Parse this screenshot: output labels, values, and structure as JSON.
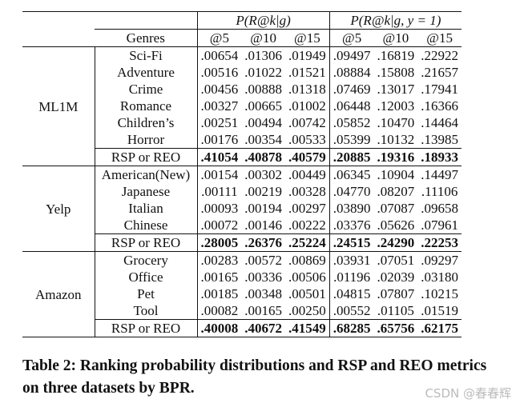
{
  "table": {
    "metric_headers": [
      "P(R@k|g)",
      "P(R@k|g, y = 1)"
    ],
    "col_headers": [
      "Genres",
      "@5",
      "@10",
      "@15",
      "@5",
      "@10",
      "@15"
    ],
    "groups": [
      {
        "dataset": "ML1M",
        "rows": [
          {
            "genre": "Sci-Fi",
            "values": [
              ".00654",
              ".01306",
              ".01949",
              ".09497",
              ".16819",
              ".22922"
            ]
          },
          {
            "genre": "Adventure",
            "values": [
              ".00516",
              ".01022",
              ".01521",
              ".08884",
              ".15808",
              ".21657"
            ]
          },
          {
            "genre": "Crime",
            "values": [
              ".00456",
              ".00888",
              ".01318",
              ".07469",
              ".13017",
              ".17941"
            ]
          },
          {
            "genre": "Romance",
            "values": [
              ".00327",
              ".00665",
              ".01002",
              ".06448",
              ".12003",
              ".16366"
            ]
          },
          {
            "genre": "Children’s",
            "values": [
              ".00251",
              ".00494",
              ".00742",
              ".05852",
              ".10470",
              ".14464"
            ]
          },
          {
            "genre": "Horror",
            "values": [
              ".00176",
              ".00354",
              ".00533",
              ".05399",
              ".10132",
              ".13985"
            ]
          }
        ],
        "summary": {
          "label": "RSP or REO",
          "values": [
            ".41054",
            ".40878",
            ".40579",
            ".20885",
            ".19316",
            ".18933"
          ]
        }
      },
      {
        "dataset": "Yelp",
        "rows": [
          {
            "genre": "American(New)",
            "values": [
              ".00154",
              ".00302",
              ".00449",
              ".06345",
              ".10904",
              ".14497"
            ]
          },
          {
            "genre": "Japanese",
            "values": [
              ".00111",
              ".00219",
              ".00328",
              ".04770",
              ".08207",
              ".11106"
            ]
          },
          {
            "genre": "Italian",
            "values": [
              ".00093",
              ".00194",
              ".00297",
              ".03890",
              ".07087",
              ".09658"
            ]
          },
          {
            "genre": "Chinese",
            "values": [
              ".00072",
              ".00146",
              ".00222",
              ".03376",
              ".05626",
              ".07961"
            ]
          }
        ],
        "summary": {
          "label": "RSP or REO",
          "values": [
            ".28005",
            ".26376",
            ".25224",
            ".24515",
            ".24290",
            ".22253"
          ]
        }
      },
      {
        "dataset": "Amazon",
        "rows": [
          {
            "genre": "Grocery",
            "values": [
              ".00283",
              ".00572",
              ".00869",
              ".03931",
              ".07051",
              ".09297"
            ]
          },
          {
            "genre": "Office",
            "values": [
              ".00165",
              ".00336",
              ".00506",
              ".01196",
              ".02039",
              ".03180"
            ]
          },
          {
            "genre": "Pet",
            "values": [
              ".00185",
              ".00348",
              ".00501",
              ".04815",
              ".07807",
              ".10215"
            ]
          },
          {
            "genre": "Tool",
            "values": [
              ".00082",
              ".00165",
              ".00250",
              ".00552",
              ".01105",
              ".01519"
            ]
          }
        ],
        "summary": {
          "label": "RSP or REO",
          "values": [
            ".40008",
            ".40672",
            ".41549",
            ".68285",
            ".65756",
            ".62175"
          ]
        }
      }
    ]
  },
  "caption": "Table 2: Ranking probability distributions and RSP and REO metrics on three datasets by BPR.",
  "watermark": "CSDN @春春辉"
}
